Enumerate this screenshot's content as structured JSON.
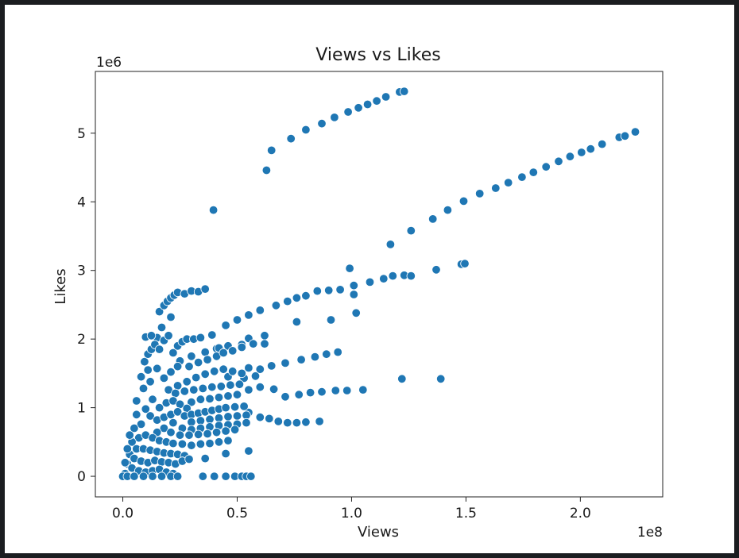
{
  "chart_data": {
    "type": "scatter",
    "title": "Views vs Likes",
    "xlabel": "Views",
    "ylabel": "Likes",
    "x_offset_text": "1e8",
    "y_offset_text": "1e6",
    "xlim": [
      -12000000,
      236000000
    ],
    "ylim": [
      -300000,
      5900000
    ],
    "x_ticks": [
      0,
      50000000,
      100000000,
      150000000,
      200000000
    ],
    "x_tick_labels": [
      "0.0",
      "0.5",
      "1.0",
      "1.5",
      "2.0"
    ],
    "y_ticks": [
      0,
      1000000,
      2000000,
      3000000,
      4000000,
      5000000
    ],
    "y_tick_labels": [
      "0",
      "1",
      "2",
      "3",
      "4",
      "5"
    ],
    "grid": false,
    "marker_color": "#1f77b4",
    "series": [
      {
        "points": [
          [
            62800000,
            4460000
          ],
          [
            65000000,
            4750000
          ],
          [
            73500000,
            4920000
          ],
          [
            80000000,
            5050000
          ],
          [
            87000000,
            5140000
          ],
          [
            92500000,
            5230000
          ],
          [
            98500000,
            5310000
          ],
          [
            103000000,
            5370000
          ],
          [
            107000000,
            5420000
          ],
          [
            111000000,
            5470000
          ],
          [
            115000000,
            5530000
          ],
          [
            121000000,
            5600000
          ],
          [
            123000000,
            5610000
          ],
          [
            39600000,
            3880000
          ],
          [
            99200000,
            3030000
          ],
          [
            117000000,
            3380000
          ],
          [
            126000000,
            3580000
          ],
          [
            135500000,
            3750000
          ],
          [
            142000000,
            3880000
          ],
          [
            149000000,
            4010000
          ],
          [
            156000000,
            4120000
          ],
          [
            163000000,
            4200000
          ],
          [
            168500000,
            4280000
          ],
          [
            174500000,
            4360000
          ],
          [
            179500000,
            4430000
          ],
          [
            185000000,
            4510000
          ],
          [
            190500000,
            4590000
          ],
          [
            195500000,
            4660000
          ],
          [
            200500000,
            4720000
          ],
          [
            204500000,
            4770000
          ],
          [
            209500000,
            4840000
          ],
          [
            217000000,
            4940000
          ],
          [
            219500000,
            4960000
          ],
          [
            224000000,
            5020000
          ],
          [
            16000000,
            2400000
          ],
          [
            18000000,
            2490000
          ],
          [
            19500000,
            2550000
          ],
          [
            21000000,
            2600000
          ],
          [
            22500000,
            2640000
          ],
          [
            24000000,
            2680000
          ],
          [
            27000000,
            2660000
          ],
          [
            30000000,
            2700000
          ],
          [
            33000000,
            2690000
          ],
          [
            36000000,
            2730000
          ],
          [
            21000000,
            2320000
          ],
          [
            17000000,
            2170000
          ],
          [
            15000000,
            2020000
          ],
          [
            45000000,
            2200000
          ],
          [
            50000000,
            2280000
          ],
          [
            55000000,
            2350000
          ],
          [
            60000000,
            2420000
          ],
          [
            67000000,
            2490000
          ],
          [
            72000000,
            2550000
          ],
          [
            76000000,
            2600000
          ],
          [
            80000000,
            2630000
          ],
          [
            85000000,
            2700000
          ],
          [
            90000000,
            2710000
          ],
          [
            95000000,
            2720000
          ],
          [
            101000000,
            2780000
          ],
          [
            108000000,
            2830000
          ],
          [
            114000000,
            2880000
          ],
          [
            118000000,
            2920000
          ],
          [
            123000000,
            2930000
          ],
          [
            126000000,
            2920000
          ],
          [
            137000000,
            3010000
          ],
          [
            148000000,
            3090000
          ],
          [
            149500000,
            3100000
          ],
          [
            101000000,
            2650000
          ],
          [
            102000000,
            2380000
          ],
          [
            91000000,
            2280000
          ],
          [
            76000000,
            2250000
          ],
          [
            62000000,
            2050000
          ],
          [
            55000000,
            2010000
          ],
          [
            30000000,
            1750000
          ],
          [
            36000000,
            1810000
          ],
          [
            41000000,
            1860000
          ],
          [
            46000000,
            1900000
          ],
          [
            52000000,
            1920000
          ],
          [
            57000000,
            1930000
          ],
          [
            62000000,
            1930000
          ],
          [
            78000000,
            1700000
          ],
          [
            84000000,
            1740000
          ],
          [
            89000000,
            1780000
          ],
          [
            94000000,
            1810000
          ],
          [
            55000000,
            1580000
          ],
          [
            60000000,
            1560000
          ],
          [
            65000000,
            1610000
          ],
          [
            71000000,
            1650000
          ],
          [
            46000000,
            1450000
          ],
          [
            53000000,
            1430000
          ],
          [
            58000000,
            1460000
          ],
          [
            55000000,
            1260000
          ],
          [
            60000000,
            1300000
          ],
          [
            66000000,
            1270000
          ],
          [
            71000000,
            1160000
          ],
          [
            77000000,
            1190000
          ],
          [
            82000000,
            1220000
          ],
          [
            87000000,
            1230000
          ],
          [
            93000000,
            1250000
          ],
          [
            98000000,
            1250000
          ],
          [
            105000000,
            1260000
          ],
          [
            122000000,
            1420000
          ],
          [
            139000000,
            1420000
          ],
          [
            55000000,
            930000
          ],
          [
            60000000,
            860000
          ],
          [
            64000000,
            840000
          ],
          [
            68000000,
            800000
          ],
          [
            72000000,
            780000
          ],
          [
            76000000,
            780000
          ],
          [
            80000000,
            790000
          ],
          [
            86000000,
            800000
          ],
          [
            55000000,
            370000
          ],
          [
            45000000,
            330000
          ],
          [
            36000000,
            260000
          ],
          [
            35000000,
            0
          ],
          [
            40000000,
            0
          ],
          [
            45000000,
            0
          ],
          [
            49000000,
            0
          ],
          [
            52000000,
            0
          ],
          [
            54000000,
            0
          ],
          [
            56000000,
            0
          ],
          [
            8000000,
            1450000
          ],
          [
            9500000,
            1670000
          ],
          [
            11000000,
            1780000
          ],
          [
            12500000,
            1850000
          ],
          [
            14000000,
            1920000
          ],
          [
            10000000,
            2030000
          ],
          [
            12500000,
            2050000
          ],
          [
            16000000,
            1850000
          ],
          [
            18000000,
            1980000
          ],
          [
            20000000,
            2050000
          ],
          [
            22000000,
            1800000
          ],
          [
            24000000,
            1900000
          ],
          [
            26000000,
            1960000
          ],
          [
            28000000,
            2000000
          ],
          [
            31000000,
            2000000
          ],
          [
            34000000,
            2020000
          ],
          [
            39000000,
            2060000
          ],
          [
            42000000,
            1870000
          ],
          [
            25000000,
            1680000
          ],
          [
            29000000,
            1600000
          ],
          [
            33000000,
            1660000
          ],
          [
            37000000,
            1700000
          ],
          [
            41000000,
            1750000
          ],
          [
            44000000,
            1800000
          ],
          [
            48000000,
            1830000
          ],
          [
            52000000,
            1880000
          ],
          [
            15000000,
            1570000
          ],
          [
            18000000,
            1430000
          ],
          [
            21000000,
            1520000
          ],
          [
            24000000,
            1600000
          ],
          [
            20000000,
            1260000
          ],
          [
            24000000,
            1320000
          ],
          [
            28000000,
            1380000
          ],
          [
            32000000,
            1440000
          ],
          [
            36000000,
            1490000
          ],
          [
            40000000,
            1530000
          ],
          [
            44000000,
            1560000
          ],
          [
            48000000,
            1530000
          ],
          [
            52000000,
            1500000
          ],
          [
            23000000,
            1210000
          ],
          [
            27000000,
            1240000
          ],
          [
            31000000,
            1260000
          ],
          [
            35000000,
            1280000
          ],
          [
            39000000,
            1300000
          ],
          [
            43000000,
            1310000
          ],
          [
            47000000,
            1330000
          ],
          [
            51000000,
            1340000
          ],
          [
            30000000,
            1080000
          ],
          [
            34000000,
            1120000
          ],
          [
            38000000,
            1130000
          ],
          [
            42000000,
            1150000
          ],
          [
            46000000,
            1170000
          ],
          [
            50000000,
            1190000
          ],
          [
            13000000,
            1120000
          ],
          [
            16000000,
            1000000
          ],
          [
            19000000,
            1070000
          ],
          [
            22000000,
            1100000
          ],
          [
            25000000,
            1050000
          ],
          [
            28000000,
            990000
          ],
          [
            10000000,
            980000
          ],
          [
            12000000,
            880000
          ],
          [
            15000000,
            820000
          ],
          [
            18000000,
            860000
          ],
          [
            21000000,
            900000
          ],
          [
            24000000,
            940000
          ],
          [
            27000000,
            880000
          ],
          [
            30000000,
            900000
          ],
          [
            33000000,
            920000
          ],
          [
            36000000,
            940000
          ],
          [
            39000000,
            960000
          ],
          [
            42000000,
            980000
          ],
          [
            45000000,
            1000000
          ],
          [
            49000000,
            1010000
          ],
          [
            53000000,
            1020000
          ],
          [
            30000000,
            790000
          ],
          [
            34000000,
            810000
          ],
          [
            38000000,
            830000
          ],
          [
            42000000,
            850000
          ],
          [
            46000000,
            870000
          ],
          [
            50000000,
            880000
          ],
          [
            54000000,
            890000
          ],
          [
            26000000,
            700000
          ],
          [
            30000000,
            680000
          ],
          [
            34000000,
            700000
          ],
          [
            38000000,
            720000
          ],
          [
            42000000,
            740000
          ],
          [
            46000000,
            750000
          ],
          [
            50000000,
            760000
          ],
          [
            54000000,
            780000
          ],
          [
            22000000,
            780000
          ],
          [
            18000000,
            700000
          ],
          [
            15000000,
            640000
          ],
          [
            21000000,
            640000
          ],
          [
            25000000,
            600000
          ],
          [
            29000000,
            600000
          ],
          [
            33000000,
            610000
          ],
          [
            37000000,
            620000
          ],
          [
            41000000,
            640000
          ],
          [
            45000000,
            660000
          ],
          [
            49000000,
            680000
          ],
          [
            8000000,
            760000
          ],
          [
            6000000,
            900000
          ],
          [
            5000000,
            700000
          ],
          [
            7000000,
            560000
          ],
          [
            10000000,
            600000
          ],
          [
            13000000,
            560000
          ],
          [
            16000000,
            520000
          ],
          [
            19000000,
            500000
          ],
          [
            22000000,
            480000
          ],
          [
            26000000,
            470000
          ],
          [
            30000000,
            450000
          ],
          [
            34000000,
            470000
          ],
          [
            38000000,
            480000
          ],
          [
            42000000,
            500000
          ],
          [
            46000000,
            520000
          ],
          [
            4000000,
            500000
          ],
          [
            6000000,
            400000
          ],
          [
            9000000,
            400000
          ],
          [
            12000000,
            380000
          ],
          [
            15000000,
            360000
          ],
          [
            18000000,
            340000
          ],
          [
            21000000,
            330000
          ],
          [
            24000000,
            320000
          ],
          [
            27000000,
            300000
          ],
          [
            3000000,
            320000
          ],
          [
            5000000,
            260000
          ],
          [
            8000000,
            220000
          ],
          [
            11000000,
            200000
          ],
          [
            14000000,
            230000
          ],
          [
            17000000,
            210000
          ],
          [
            20000000,
            200000
          ],
          [
            23000000,
            180000
          ],
          [
            26000000,
            220000
          ],
          [
            29000000,
            250000
          ],
          [
            2000000,
            180000
          ],
          [
            4000000,
            120000
          ],
          [
            7000000,
            80000
          ],
          [
            10000000,
            60000
          ],
          [
            13000000,
            80000
          ],
          [
            16000000,
            100000
          ],
          [
            19000000,
            60000
          ],
          [
            22000000,
            40000
          ],
          [
            1000000,
            40000
          ],
          [
            0,
            0
          ],
          [
            2000000,
            0
          ],
          [
            5000000,
            0
          ],
          [
            9000000,
            0
          ],
          [
            13000000,
            0
          ],
          [
            17000000,
            0
          ],
          [
            21000000,
            0
          ],
          [
            24000000,
            0
          ],
          [
            3000000,
            600000
          ],
          [
            2000000,
            400000
          ],
          [
            1000000,
            200000
          ],
          [
            6000000,
            1100000
          ],
          [
            9000000,
            1280000
          ],
          [
            12000000,
            1380000
          ],
          [
            11000000,
            1550000
          ]
        ]
      }
    ]
  }
}
